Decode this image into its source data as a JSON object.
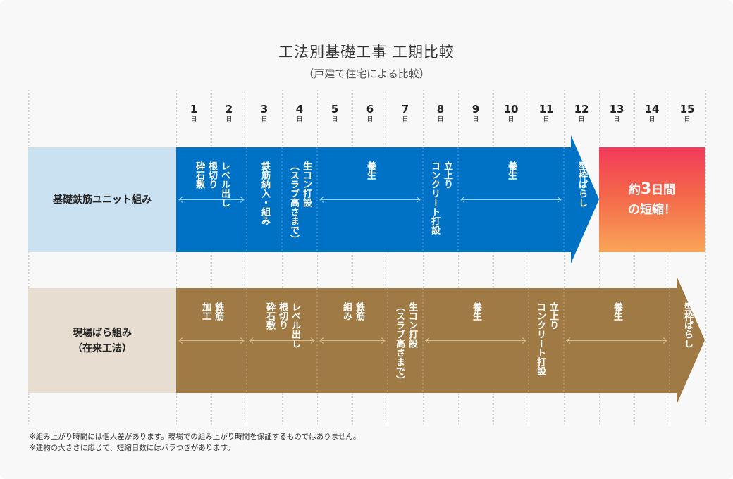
{
  "title": "工法別基礎工事 工期比較",
  "subtitle": "（戸建て住宅による比較）",
  "days": [
    "1",
    "2",
    "3",
    "4",
    "5",
    "6",
    "7",
    "8",
    "9",
    "10",
    "11",
    "12",
    "13",
    "14",
    "15"
  ],
  "day_unit": "日",
  "colors": {
    "unit": "#0072c6",
    "unit_label_bg": "#c9e1f1",
    "site": "#a07a44",
    "site_label_bg": "#e7ddd1"
  },
  "unit_row": {
    "label": "基礎鉄筋ユニット組み",
    "tasks": [
      {
        "name": "level-rebar",
        "start": 1,
        "end": 2,
        "lines": [
          "レベル出し",
          "根切り",
          "砕石敷"
        ]
      },
      {
        "name": "rebar-install",
        "start": 3,
        "end": 3,
        "lines": [
          "鉄筋納入・組み"
        ]
      },
      {
        "name": "concrete-slab",
        "start": 4,
        "end": 4,
        "lines": [
          "生コン打設",
          "（スラブ高さまで）"
        ]
      },
      {
        "name": "curing-1",
        "start": 5,
        "end": 7,
        "lines": [
          "養生"
        ]
      },
      {
        "name": "riser-concrete",
        "start": 8,
        "end": 8,
        "lines": [
          "立上り",
          "コンクリート打設"
        ]
      },
      {
        "name": "curing-2",
        "start": 9,
        "end": 11,
        "lines": [
          "養生"
        ]
      },
      {
        "name": "formwork-removal",
        "start": 12,
        "end": 12,
        "lines": [
          "型枠ばらし"
        ]
      }
    ]
  },
  "site_row": {
    "label_line1": "現場ばら組み",
    "label_line2": "（在来工法）",
    "tasks": [
      {
        "name": "rebar-processing",
        "start": 1,
        "end": 2,
        "lines": [
          "鉄筋",
          "加工"
        ]
      },
      {
        "name": "level-excavation",
        "start": 3,
        "end": 4,
        "lines": [
          "レベル出し",
          "根切り",
          "砕石敷"
        ]
      },
      {
        "name": "rebar-assembly",
        "start": 5,
        "end": 6,
        "lines": [
          "鉄筋",
          "組み"
        ]
      },
      {
        "name": "concrete-slab",
        "start": 7,
        "end": 7,
        "lines": [
          "生コン打設",
          "（スラブ高さまで）"
        ]
      },
      {
        "name": "curing-1",
        "start": 8,
        "end": 10,
        "lines": [
          "養生"
        ]
      },
      {
        "name": "riser-concrete",
        "start": 11,
        "end": 11,
        "lines": [
          "立上り",
          "コンクリート打設"
        ]
      },
      {
        "name": "curing-2",
        "start": 12,
        "end": 14,
        "lines": [
          "養生"
        ]
      },
      {
        "name": "formwork-removal",
        "start": 15,
        "end": 15,
        "lines": [
          "型枠ばらし"
        ]
      }
    ]
  },
  "result": {
    "prefix": "約",
    "number": "3",
    "suffix": "日間",
    "line2": "の短縮！"
  },
  "notes": [
    "※組み上がり時間には個人差があります。現場での組み上がり時間を保証するものではありません。",
    "※建物の大きさに応じて、短縮日数にはバラつきがあります。"
  ]
}
